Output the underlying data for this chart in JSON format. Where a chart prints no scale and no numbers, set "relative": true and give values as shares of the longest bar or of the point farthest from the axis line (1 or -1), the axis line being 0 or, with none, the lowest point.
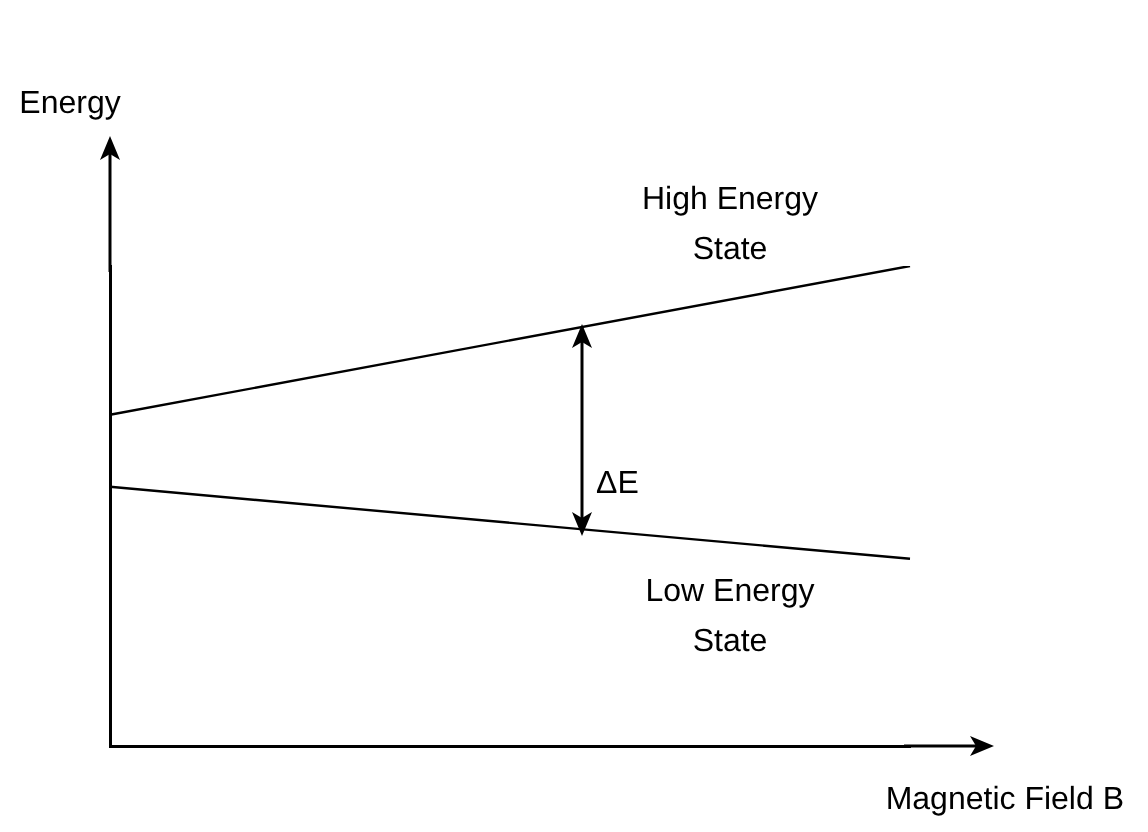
{
  "chart_data": {
    "type": "line",
    "xlabel": "Magnetic Field B",
    "ylabel": "Energy",
    "relative": true,
    "categories": [
      null,
      null
    ],
    "legend": false,
    "grid": false,
    "marker": "none",
    "line_style": "solid",
    "annotations": [
      "ΔE"
    ],
    "series": [
      {
        "name": "High Energy State",
        "color": "#000000",
        "values": [
          0.69,
          1
        ]
      },
      {
        "name": "Low Energy State",
        "color": "#000000",
        "values": [
          0.54,
          0.39
        ]
      }
    ]
  }
}
